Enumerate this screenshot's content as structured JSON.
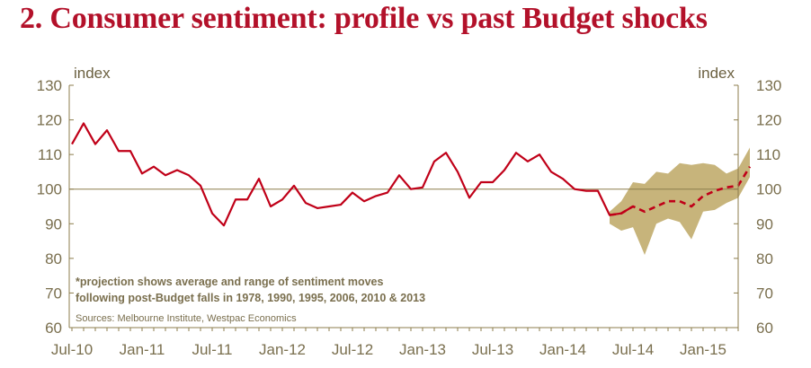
{
  "title": "2. Consumer sentiment: profile vs past Budget shocks",
  "chart_data": {
    "type": "line",
    "title": "2. Consumer sentiment: profile vs past Budget shocks",
    "y_unit_left": "index",
    "y_unit_right": "index",
    "ylim": [
      60,
      130
    ],
    "y_ticks": [
      60,
      70,
      80,
      90,
      100,
      110,
      120,
      130
    ],
    "reference_line": 100,
    "x_tick_labels": [
      "Jul-10",
      "Jan-11",
      "Jul-11",
      "Jan-12",
      "Jul-12",
      "Jan-13",
      "Jul-13",
      "Jan-14",
      "Jul-14",
      "Jan-15"
    ],
    "x_tick_index": [
      0,
      6,
      12,
      18,
      24,
      30,
      36,
      42,
      48,
      54
    ],
    "series": [
      {
        "name": "Consumer sentiment",
        "style": "solid",
        "color": "#c00018",
        "start_index": 0,
        "values": [
          113,
          119,
          113,
          117,
          111,
          111,
          104.5,
          106.5,
          104,
          105.5,
          104,
          101,
          93,
          89.5,
          97,
          97,
          103,
          95,
          97,
          101,
          96,
          94.5,
          95,
          95.5,
          99,
          96.5,
          98,
          99,
          104,
          100,
          100.5,
          108,
          110.5,
          105,
          97.5,
          102,
          102,
          105.5,
          110.5,
          108,
          110,
          105,
          103,
          100,
          99.5,
          99.5,
          92.5,
          93,
          95
        ]
      },
      {
        "name": "Projection (average of past post-Budget falls)",
        "style": "dashed",
        "color": "#c00018",
        "start_index": 46,
        "values": [
          92.5,
          93,
          95,
          93.5,
          95,
          96.5,
          96.5,
          95,
          98,
          99.5,
          100.5,
          101,
          106.5
        ]
      },
      {
        "name": "Range of sentiment moves",
        "style": "band",
        "color": "#c7b47b",
        "start_index": 46,
        "upper": [
          93.5,
          96.5,
          102,
          101.5,
          105,
          104.5,
          107.5,
          107,
          107.5,
          107,
          104.5,
          106,
          112
        ],
        "lower": [
          90,
          88,
          89,
          81,
          90,
          91.5,
          90.5,
          85.5,
          93.5,
          94,
          96,
          97.5,
          103.5
        ]
      }
    ],
    "note": "*projection shows average and range of sentiment moves following post-Budget falls in 1978, 1990, 1995, 2006, 2010 & 2013",
    "note_line1": "*projection shows average and range of sentiment moves",
    "note_line2": "following post-Budget falls in 1978, 1990, 1995, 2006, 2010 & 2013",
    "source": "Sources: Melbourne Institute, Westpac Economics"
  }
}
